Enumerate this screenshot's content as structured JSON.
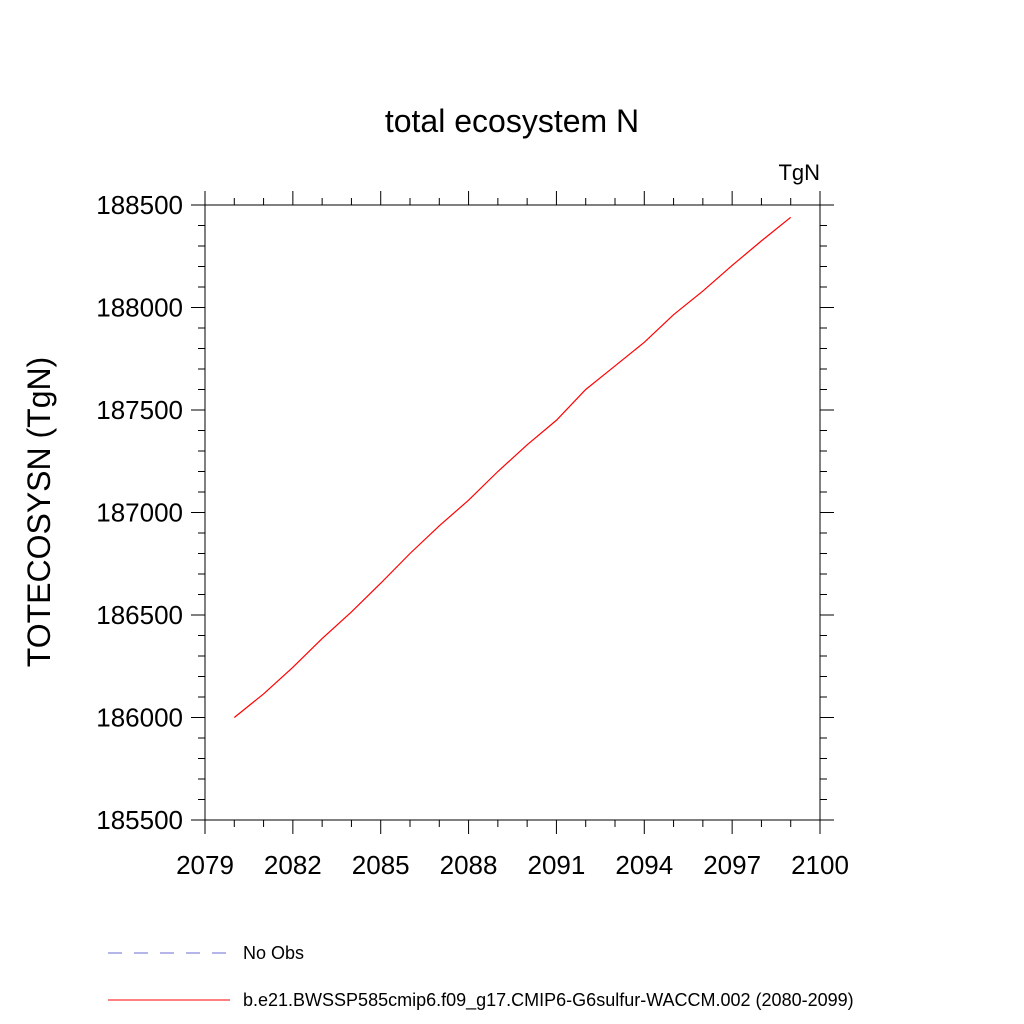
{
  "chart_data": {
    "type": "line",
    "title": "total ecosystem N",
    "units_label": "TgN",
    "ylabel": "TOTECOSYSN  (TgN)",
    "xlabel": "",
    "xlim": [
      2079,
      2100
    ],
    "ylim": [
      185500,
      188500
    ],
    "x_ticks": [
      2079,
      2082,
      2085,
      2088,
      2091,
      2094,
      2097,
      2100
    ],
    "x_tick_labels": [
      "2079",
      "2082",
      "2085",
      "2088",
      "2091",
      "2094",
      "2097",
      "2100"
    ],
    "y_ticks": [
      185500,
      186000,
      186500,
      187000,
      187500,
      188000,
      188500
    ],
    "y_tick_labels": [
      "185500",
      "186000",
      "186500",
      "187000",
      "187500",
      "188000",
      "188500"
    ],
    "grid": false,
    "legend_position": "bottom",
    "series": [
      {
        "name": "b.e21.BWSSP585cmip6.f09_g17.CMIP6-G6sulfur-WACCM.002 (2080-2099)",
        "color": "#ff0000",
        "style": "solid",
        "x": [
          2080,
          2081,
          2082,
          2083,
          2084,
          2085,
          2086,
          2087,
          2088,
          2089,
          2090,
          2091,
          2092,
          2093,
          2094,
          2095,
          2096,
          2097,
          2098,
          2099
        ],
        "y": [
          186000,
          186115,
          186245,
          186385,
          186515,
          186655,
          186800,
          186935,
          187060,
          187200,
          187330,
          187450,
          187600,
          187715,
          187830,
          187965,
          188080,
          188205,
          188325,
          188440
        ]
      }
    ],
    "legend": [
      {
        "label": "No Obs",
        "color": "#6b6bd6",
        "style": "dashed"
      },
      {
        "label": "b.e21.BWSSP585cmip6.f09_g17.CMIP6-G6sulfur-WACCM.002 (2080-2099)",
        "color": "#ff0000",
        "style": "solid"
      }
    ]
  }
}
